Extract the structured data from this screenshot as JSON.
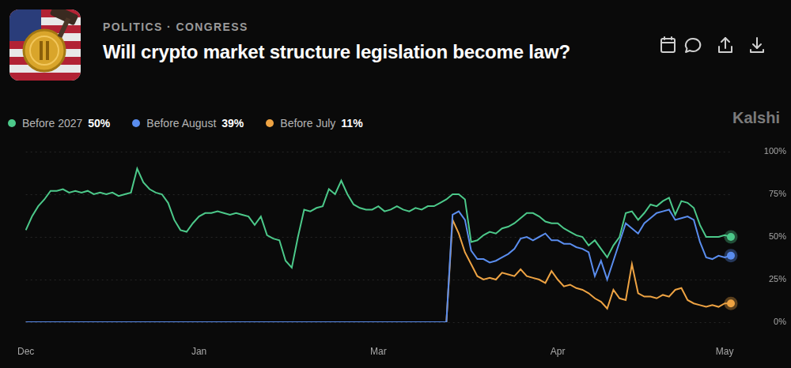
{
  "chart_data": {
    "type": "line",
    "title": "Will crypto market structure legislation become law?",
    "subtitle": "POLITICS · CONGRESS",
    "annotations": [
      {
        "text": "Kalshi"
      }
    ],
    "legend": "top",
    "grid": true,
    "categories": [
      "Dec",
      null,
      null,
      null,
      null,
      null,
      null,
      null,
      null,
      null,
      null,
      null,
      null,
      null,
      null,
      null,
      null,
      null,
      null,
      null,
      null,
      null,
      null,
      null,
      null,
      null,
      null,
      null,
      "Jan",
      null,
      null,
      null,
      null,
      null,
      null,
      null,
      null,
      null,
      null,
      null,
      null,
      null,
      null,
      null,
      null,
      null,
      null,
      null,
      null,
      null,
      null,
      null,
      null,
      null,
      null,
      null,
      null,
      "Mar",
      null,
      null,
      null,
      null,
      null,
      null,
      null,
      null,
      null,
      null,
      null,
      null,
      null,
      null,
      null,
      null,
      null,
      null,
      null,
      null,
      null,
      null,
      null,
      null,
      null,
      null,
      null,
      null,
      "Apr",
      null,
      null,
      null,
      null,
      null,
      null,
      null,
      null,
      null,
      null,
      null,
      null,
      null,
      null,
      null,
      null,
      null,
      null,
      null,
      null,
      null,
      null,
      null,
      null,
      null,
      null,
      "May",
      null
    ],
    "ylim": [
      0,
      100
    ],
    "yticks": [
      {
        "value": 0,
        "label": "0%"
      },
      {
        "value": 25,
        "label": "25%"
      },
      {
        "value": 50,
        "label": "50%"
      },
      {
        "value": 75,
        "label": "75%"
      },
      {
        "value": 100,
        "label": "100%"
      }
    ],
    "series": [
      {
        "name": "Before 2027",
        "color": "#4cc98a",
        "current": {
          "value": 50,
          "label": "50%"
        },
        "values": [
          54,
          62,
          68,
          72,
          77,
          77,
          78,
          76,
          77,
          76,
          77,
          75,
          76,
          75,
          76,
          74,
          75,
          76,
          90,
          82,
          78,
          76,
          75,
          70,
          60,
          54,
          53,
          58,
          62,
          64,
          64,
          65,
          64,
          63,
          64,
          63,
          62,
          57,
          62,
          51,
          49,
          48,
          36,
          32,
          50,
          66,
          65,
          67,
          68,
          78,
          75,
          83,
          75,
          69,
          67,
          66,
          66,
          68,
          65,
          66,
          68,
          66,
          65,
          67,
          66,
          68,
          68,
          70,
          72,
          75,
          75,
          72,
          47,
          48,
          51,
          53,
          52,
          55,
          56,
          58,
          61,
          64,
          64,
          62,
          59,
          58,
          58,
          55,
          53,
          51,
          50,
          45,
          48,
          43,
          38,
          45,
          50,
          64,
          65,
          60,
          64,
          69,
          68,
          71,
          73,
          63,
          71,
          70,
          67,
          57,
          50,
          50,
          50,
          51,
          50
        ]
      },
      {
        "name": "Before August",
        "color": "#5a8dee",
        "current": {
          "value": 39,
          "label": "39%"
        },
        "values": [
          0,
          0,
          0,
          0,
          0,
          0,
          0,
          0,
          0,
          0,
          0,
          0,
          0,
          0,
          0,
          0,
          0,
          0,
          0,
          0,
          0,
          0,
          0,
          0,
          0,
          0,
          0,
          0,
          0,
          0,
          0,
          0,
          0,
          0,
          0,
          0,
          0,
          0,
          0,
          0,
          0,
          0,
          0,
          0,
          0,
          0,
          0,
          0,
          0,
          0,
          0,
          0,
          0,
          0,
          0,
          0,
          0,
          0,
          0,
          0,
          0,
          0,
          0,
          0,
          0,
          0,
          0,
          0,
          0,
          63,
          65,
          60,
          42,
          37,
          37,
          35,
          36,
          38,
          40,
          43,
          49,
          50,
          48,
          50,
          52,
          48,
          48,
          46,
          46,
          44,
          43,
          41,
          27,
          36,
          25,
          36,
          47,
          58,
          55,
          52,
          58,
          61,
          64,
          65,
          66,
          60,
          61,
          62,
          60,
          47,
          38,
          37,
          39,
          38,
          39
        ]
      },
      {
        "name": "Before July",
        "color": "#eea343",
        "current": {
          "value": 11,
          "label": "11%"
        },
        "values": [
          0,
          0,
          0,
          0,
          0,
          0,
          0,
          0,
          0,
          0,
          0,
          0,
          0,
          0,
          0,
          0,
          0,
          0,
          0,
          0,
          0,
          0,
          0,
          0,
          0,
          0,
          0,
          0,
          0,
          0,
          0,
          0,
          0,
          0,
          0,
          0,
          0,
          0,
          0,
          0,
          0,
          0,
          0,
          0,
          0,
          0,
          0,
          0,
          0,
          0,
          0,
          0,
          0,
          0,
          0,
          0,
          0,
          0,
          0,
          0,
          0,
          0,
          0,
          0,
          0,
          0,
          0,
          0,
          0,
          60,
          52,
          41,
          34,
          27,
          25,
          26,
          25,
          29,
          28,
          27,
          31,
          27,
          26,
          25,
          23,
          30,
          25,
          21,
          22,
          20,
          19,
          17,
          14,
          12,
          8,
          19,
          14,
          13,
          34,
          17,
          15,
          15,
          14,
          16,
          15,
          19,
          20,
          13,
          11,
          10,
          9,
          10,
          9,
          11,
          11
        ]
      }
    ]
  }
}
